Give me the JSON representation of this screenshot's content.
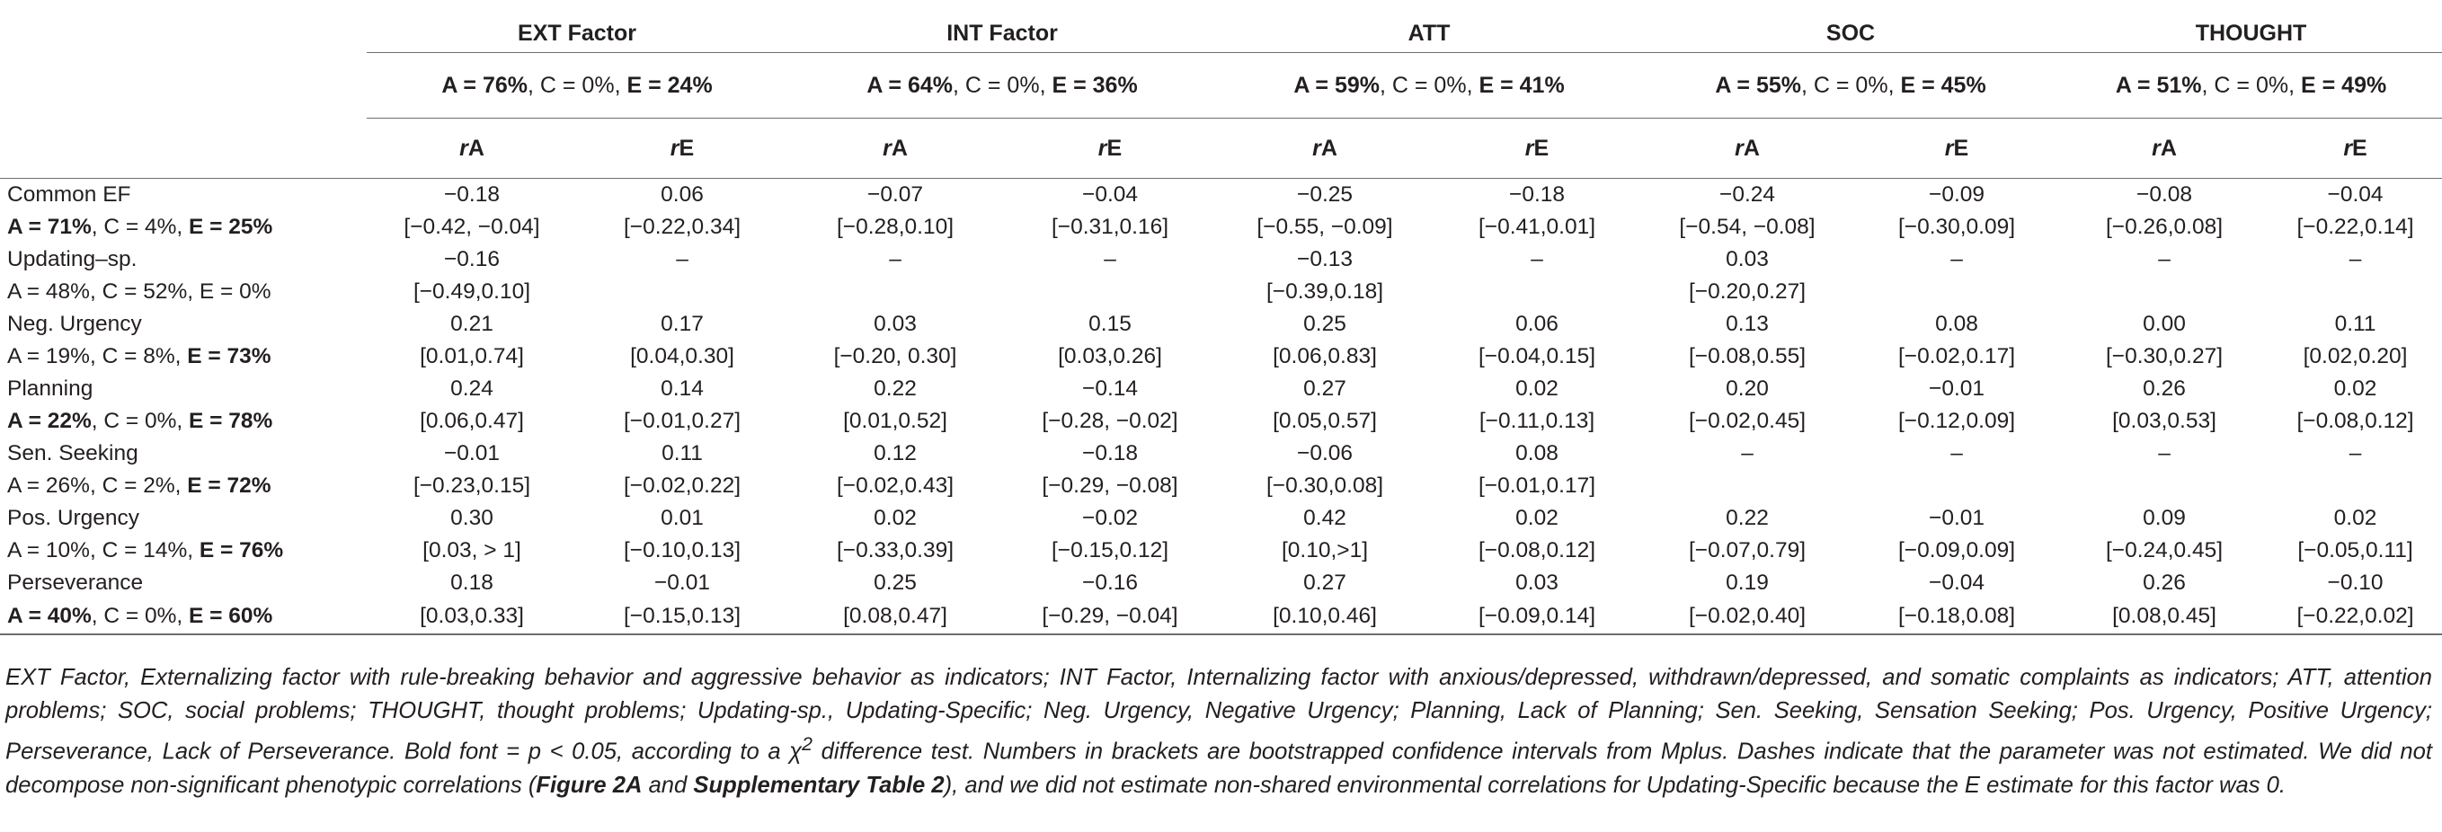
{
  "table": {
    "factors": [
      {
        "name": "EXT Factor",
        "A": "A = 76%",
        "C": "C = 0%",
        "E": "E = 24%",
        "A_bold": true,
        "E_bold": true
      },
      {
        "name": "INT Factor",
        "A": "A = 64%",
        "C": "C = 0%",
        "E": "E = 36%",
        "A_bold": true,
        "E_bold": true
      },
      {
        "name": "ATT",
        "A": "A = 59%",
        "C": "C = 0%",
        "E": "E = 41%",
        "A_bold": true,
        "E_bold": true
      },
      {
        "name": "SOC",
        "A": "A = 55%",
        "C": "C = 0%",
        "E": "E = 45%",
        "A_bold": true,
        "E_bold": true
      },
      {
        "name": "THOUGHT",
        "A": "A = 51%",
        "C": "C = 0%",
        "E": "E = 49%",
        "A_bold": true,
        "E_bold": true
      }
    ],
    "col_headers": {
      "r": "r",
      "A": "A",
      "E": "E"
    },
    "rows": [
      {
        "label": "Common EF",
        "ace": {
          "A": "A = 71%",
          "C": "C = 4%",
          "E": "E = 25%",
          "A_bold": true,
          "E_bold": true
        },
        "est": [
          {
            "v": "−0.18",
            "b": true
          },
          {
            "v": "0.06",
            "b": false
          },
          {
            "v": "−0.07",
            "b": false
          },
          {
            "v": "−0.04",
            "b": false
          },
          {
            "v": "−0.25",
            "b": true
          },
          {
            "v": "−0.18",
            "b": false
          },
          {
            "v": "−0.24",
            "b": true
          },
          {
            "v": "−0.09",
            "b": false
          },
          {
            "v": "−0.08",
            "b": false
          },
          {
            "v": "−0.04",
            "b": false
          }
        ],
        "ci": [
          "[−0.42, −0.04]",
          "[−0.22,0.34]",
          "[−0.28,0.10]",
          "[−0.31,0.16]",
          "[−0.55, −0.09]",
          "[−0.41,0.01]",
          "[−0.54, −0.08]",
          "[−0.30,0.09]",
          "[−0.26,0.08]",
          "[−0.22,0.14]"
        ]
      },
      {
        "label": "Updating–sp.",
        "ace": {
          "A": "A = 48%",
          "C": "C = 52%",
          "E": "E = 0%",
          "A_bold": false,
          "E_bold": false
        },
        "est": [
          {
            "v": "−0.16",
            "b": false
          },
          {
            "v": "–",
            "b": false
          },
          {
            "v": "–",
            "b": false
          },
          {
            "v": "–",
            "b": false
          },
          {
            "v": "−0.13",
            "b": false
          },
          {
            "v": "–",
            "b": false
          },
          {
            "v": "0.03",
            "b": false
          },
          {
            "v": "–",
            "b": false
          },
          {
            "v": "–",
            "b": false
          },
          {
            "v": "–",
            "b": false
          }
        ],
        "ci": [
          "[−0.49,0.10]",
          "",
          "",
          "",
          "[−0.39,0.18]",
          "",
          "[−0.20,0.27]",
          "",
          "",
          ""
        ]
      },
      {
        "label": "Neg. Urgency",
        "ace": {
          "A": "A = 19%",
          "C": "C = 8%",
          "E": "E = 73%",
          "A_bold": false,
          "E_bold": true
        },
        "est": [
          {
            "v": "0.21",
            "b": true
          },
          {
            "v": "0.17",
            "b": true
          },
          {
            "v": "0.03",
            "b": false
          },
          {
            "v": "0.15",
            "b": true
          },
          {
            "v": "0.25",
            "b": true
          },
          {
            "v": "0.06",
            "b": false
          },
          {
            "v": "0.13",
            "b": false
          },
          {
            "v": "0.08",
            "b": false
          },
          {
            "v": "0.00",
            "b": false
          },
          {
            "v": "0.11",
            "b": true
          }
        ],
        "ci": [
          "[0.01,0.74]",
          "[0.04,0.30]",
          "[−0.20, 0.30]",
          "[0.03,0.26]",
          "[0.06,0.83]",
          "[−0.04,0.15]",
          "[−0.08,0.55]",
          "[−0.02,0.17]",
          "[−0.30,0.27]",
          "[0.02,0.20]"
        ]
      },
      {
        "label": "Planning",
        "ace": {
          "A": "A = 22%",
          "C": "C = 0%",
          "E": "E = 78%",
          "A_bold": true,
          "E_bold": true
        },
        "est": [
          {
            "v": "0.24",
            "b": true
          },
          {
            "v": "0.14",
            "b": true
          },
          {
            "v": "0.22",
            "b": true
          },
          {
            "v": "−0.14",
            "b": true
          },
          {
            "v": "0.27",
            "b": true
          },
          {
            "v": "0.02",
            "b": false
          },
          {
            "v": "0.20",
            "b": true
          },
          {
            "v": "−0.01",
            "b": false
          },
          {
            "v": "0.26",
            "b": true
          },
          {
            "v": "0.02",
            "b": false
          }
        ],
        "ci": [
          "[0.06,0.47]",
          "[−0.01,0.27]",
          "[0.01,0.52]",
          "[−0.28, −0.02]",
          "[0.05,0.57]",
          "[−0.11,0.13]",
          "[−0.02,0.45]",
          "[−0.12,0.09]",
          "[0.03,0.53]",
          "[−0.08,0.12]"
        ]
      },
      {
        "label": "Sen. Seeking",
        "ace": {
          "A": "A = 26%",
          "C": "C = 2%",
          "E": "E = 72%",
          "A_bold": false,
          "E_bold": true
        },
        "est": [
          {
            "v": "−0.01",
            "b": false
          },
          {
            "v": "0.11",
            "b": false
          },
          {
            "v": "0.12",
            "b": false
          },
          {
            "v": "−0.18",
            "b": true
          },
          {
            "v": "−0.06",
            "b": false
          },
          {
            "v": "0.08",
            "b": false
          },
          {
            "v": "–",
            "b": false
          },
          {
            "v": "–",
            "b": false
          },
          {
            "v": "–",
            "b": false
          },
          {
            "v": "–",
            "b": false
          }
        ],
        "ci": [
          "[−0.23,0.15]",
          "[−0.02,0.22]",
          "[−0.02,0.43]",
          "[−0.29, −0.08]",
          "[−0.30,0.08]",
          "[−0.01,0.17]",
          "",
          "",
          "",
          ""
        ]
      },
      {
        "label": "Pos. Urgency",
        "ace": {
          "A": "A = 10%",
          "C": "C = 14%",
          "E": "E = 76%",
          "A_bold": false,
          "E_bold": true
        },
        "est": [
          {
            "v": "0.30",
            "b": true
          },
          {
            "v": "0.01",
            "b": false
          },
          {
            "v": "0.02",
            "b": false
          },
          {
            "v": "−0.02",
            "b": false
          },
          {
            "v": "0.42",
            "b": true
          },
          {
            "v": "0.02",
            "b": false
          },
          {
            "v": "0.22",
            "b": false
          },
          {
            "v": "−0.01",
            "b": false
          },
          {
            "v": "0.09",
            "b": false
          },
          {
            "v": "0.02",
            "b": false
          }
        ],
        "ci": [
          "[0.03, > 1]",
          "[−0.10,0.13]",
          "[−0.33,0.39]",
          "[−0.15,0.12]",
          "[0.10,>1]",
          "[−0.08,0.12]",
          "[−0.07,0.79]",
          "[−0.09,0.09]",
          "[−0.24,0.45]",
          "[−0.05,0.11]"
        ]
      },
      {
        "label": "Perseverance",
        "ace": {
          "A": "A = 40%",
          "C": "C = 0%",
          "E": "E = 60%",
          "A_bold": true,
          "E_bold": true
        },
        "est": [
          {
            "v": "0.18",
            "b": true
          },
          {
            "v": "−0.01",
            "b": false
          },
          {
            "v": "0.25",
            "b": true
          },
          {
            "v": "−0.16",
            "b": true
          },
          {
            "v": "0.27",
            "b": true
          },
          {
            "v": "0.03",
            "b": false
          },
          {
            "v": "0.19",
            "b": true
          },
          {
            "v": "−0.04",
            "b": false
          },
          {
            "v": "0.26",
            "b": true
          },
          {
            "v": "−0.10",
            "b": false
          }
        ],
        "ci": [
          "[0.03,0.33]",
          "[−0.15,0.13]",
          "[0.08,0.47]",
          "[−0.29, −0.04]",
          "[0.10,0.46]",
          "[−0.09,0.14]",
          "[−0.02,0.40]",
          "[−0.18,0.08]",
          "[0.08,0.45]",
          "[−0.22,0.02]"
        ]
      }
    ]
  },
  "note": {
    "p1": "EXT Factor, Externalizing factor with rule-breaking behavior and aggressive behavior as indicators; INT Factor, Internalizing factor with anxious/depressed, withdrawn/depressed, and somatic complaints as indicators; ATT, attention problems; SOC, social problems; THOUGHT, thought problems; Updating-sp., Updating-Specific; Neg. Urgency, Negative Urgency; Planning, Lack of Planning; Sen. Seeking, Sensation Seeking; Pos. Urgency, Positive Urgency; Perseverance, Lack of Perseverance. Bold font = p < 0.05, according to a χ",
    "sup": "2",
    "p2": " difference test. Numbers in brackets are bootstrapped confidence intervals from Mplus. Dashes indicate that the parameter was not estimated. We did not decompose non-significant phenotypic correlations (",
    "ref1": "Figure 2A",
    "p3": " and ",
    "ref2": "Supplementary Table 2",
    "p4": "), and we did not estimate non-shared environmental correlations for Updating-Specific because the E estimate for this factor was 0."
  }
}
